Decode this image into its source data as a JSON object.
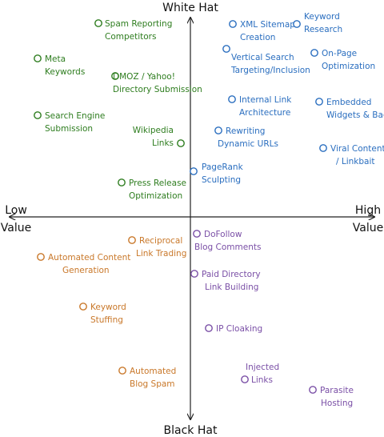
{
  "colors": {
    "green": "#2e7d1f",
    "blue": "#2a6ebf",
    "orange": "#c9782a",
    "purple": "#7a4fa6",
    "axis": "#222222",
    "dot_fill": "#ffffff"
  },
  "axes": {
    "top": "White Hat",
    "bottom": "Black Hat",
    "left": [
      "Low",
      "Value"
    ],
    "right": [
      "High",
      "Value"
    ]
  },
  "items": [
    {
      "id": "spam-reporting-competitors",
      "lines": [
        "Spam Reporting",
        "Competitors"
      ],
      "color": "green"
    },
    {
      "id": "meta-keywords",
      "lines": [
        "Meta",
        "Keywords"
      ],
      "color": "green"
    },
    {
      "id": "dmoz-yahoo-directory-submission",
      "lines": [
        "DMOZ / Yahoo!",
        "Directory Submission"
      ],
      "color": "green"
    },
    {
      "id": "search-engine-submission",
      "lines": [
        "Search Engine",
        "Submission"
      ],
      "color": "green"
    },
    {
      "id": "wikipedia-links",
      "lines": [
        "Wikipedia",
        "Links"
      ],
      "color": "green"
    },
    {
      "id": "press-release-optimization",
      "lines": [
        "Press Release",
        "Optimization"
      ],
      "color": "green"
    },
    {
      "id": "xml-sitemap-creation",
      "lines": [
        "XML Sitemap",
        "Creation"
      ],
      "color": "blue"
    },
    {
      "id": "keyword-research",
      "lines": [
        "Keyword",
        "Research"
      ],
      "color": "blue"
    },
    {
      "id": "vertical-search-targeting",
      "lines": [
        "Vertical Search",
        "Targeting/Inclusion"
      ],
      "color": "blue"
    },
    {
      "id": "on-page-optimization",
      "lines": [
        "On-Page",
        "Optimization"
      ],
      "color": "blue"
    },
    {
      "id": "internal-link-architecture",
      "lines": [
        "Internal Link",
        "Architecture"
      ],
      "color": "blue"
    },
    {
      "id": "embedded-widgets-badges",
      "lines": [
        "Embedded",
        "Widgets & Badges"
      ],
      "color": "blue"
    },
    {
      "id": "rewriting-dynamic-urls",
      "lines": [
        "Rewriting",
        "Dynamic URLs"
      ],
      "color": "blue"
    },
    {
      "id": "viral-content-linkbait",
      "lines": [
        "Viral Content",
        "/ Linkbait"
      ],
      "color": "blue"
    },
    {
      "id": "pagerank-sculpting",
      "lines": [
        "PageRank",
        "Sculpting"
      ],
      "color": "blue"
    },
    {
      "id": "reciprocal-link-trading",
      "lines": [
        "Reciprocal",
        "Link Trading"
      ],
      "color": "orange"
    },
    {
      "id": "automated-content-generation",
      "lines": [
        "Automated Content",
        "Generation"
      ],
      "color": "orange"
    },
    {
      "id": "keyword-stuffing",
      "lines": [
        "Keyword",
        "Stuffing"
      ],
      "color": "orange"
    },
    {
      "id": "automated-blog-spam",
      "lines": [
        "Automated",
        "Blog Spam"
      ],
      "color": "orange"
    },
    {
      "id": "dofollow-blog-comments",
      "lines": [
        "DoFollow",
        "Blog Comments"
      ],
      "color": "purple"
    },
    {
      "id": "paid-directory-link-building",
      "lines": [
        "Paid Directory",
        "Link Building"
      ],
      "color": "purple"
    },
    {
      "id": "ip-cloaking",
      "lines": [
        "IP Cloaking"
      ],
      "color": "purple"
    },
    {
      "id": "injected-links",
      "lines": [
        "Injected",
        "Links"
      ],
      "color": "purple"
    },
    {
      "id": "parasite-hosting",
      "lines": [
        "Parasite",
        "Hosting"
      ],
      "color": "purple"
    }
  ]
}
